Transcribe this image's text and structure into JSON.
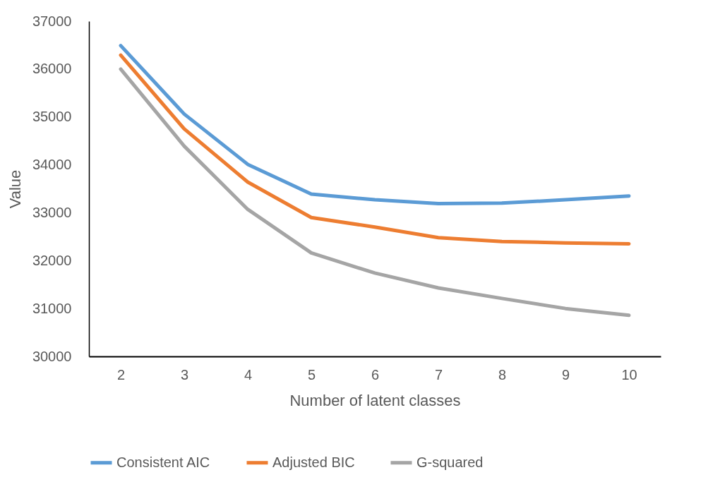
{
  "chart_data": {
    "type": "line",
    "xlabel": "Number of latent classes",
    "ylabel": "Value",
    "categories": [
      "2",
      "3",
      "4",
      "5",
      "6",
      "7",
      "8",
      "9",
      "10"
    ],
    "series": [
      {
        "name": "Consistent AIC",
        "color": "#5b9bd5",
        "values": [
          36490,
          35060,
          34010,
          33390,
          33270,
          33190,
          33200,
          33270,
          33350
        ]
      },
      {
        "name": "Adjusted BIC",
        "color": "#ed7d31",
        "values": [
          36290,
          34750,
          33640,
          32900,
          32700,
          32480,
          32400,
          32370,
          32350
        ]
      },
      {
        "name": "G-squared",
        "color": "#a5a5a5",
        "values": [
          36000,
          34390,
          33070,
          32160,
          31740,
          31430,
          31210,
          31000,
          30860
        ]
      }
    ],
    "ylim": [
      30000,
      37000
    ],
    "yticks": [
      30000,
      31000,
      32000,
      33000,
      34000,
      35000,
      36000,
      37000
    ],
    "grid": false,
    "legend": "bottom",
    "marker": "none",
    "line_style": "solid"
  }
}
